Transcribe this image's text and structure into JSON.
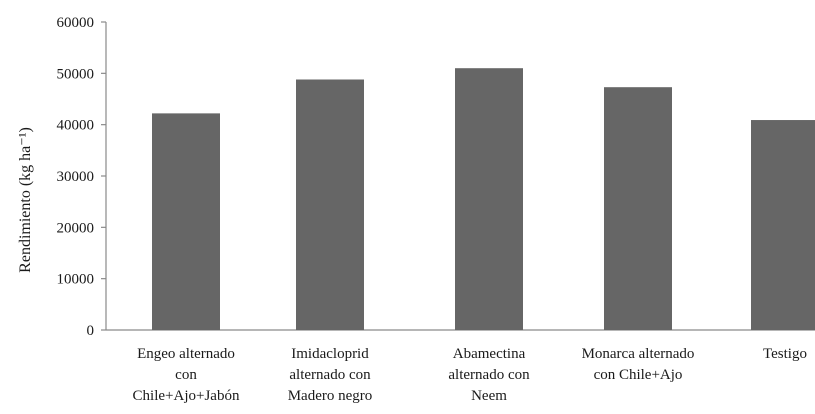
{
  "chart_data": {
    "type": "bar",
    "title": "",
    "xlabel": "",
    "ylabel": "Rendimiento (kg ha⁻¹)",
    "ylim": [
      0,
      60000
    ],
    "yticks": [
      "0",
      "10000",
      "20000",
      "30000",
      "40000",
      "50000",
      "60000"
    ],
    "ytick_values": [
      0,
      10000,
      20000,
      30000,
      40000,
      50000,
      60000
    ],
    "grid": false,
    "legend": "none",
    "bar_color": "#666666",
    "categories": [
      [
        "Engeo alternado",
        "con",
        "Chile+Ajo+Jabón"
      ],
      [
        "Imidacloprid",
        "alternado con",
        "Madero negro"
      ],
      [
        "Abamectina",
        "alternado con",
        "Neem"
      ],
      [
        "Monarca alternado",
        "con Chile+Ajo"
      ],
      [
        "Testigo"
      ]
    ],
    "values": [
      42200,
      48800,
      51000,
      47300,
      40900
    ]
  }
}
